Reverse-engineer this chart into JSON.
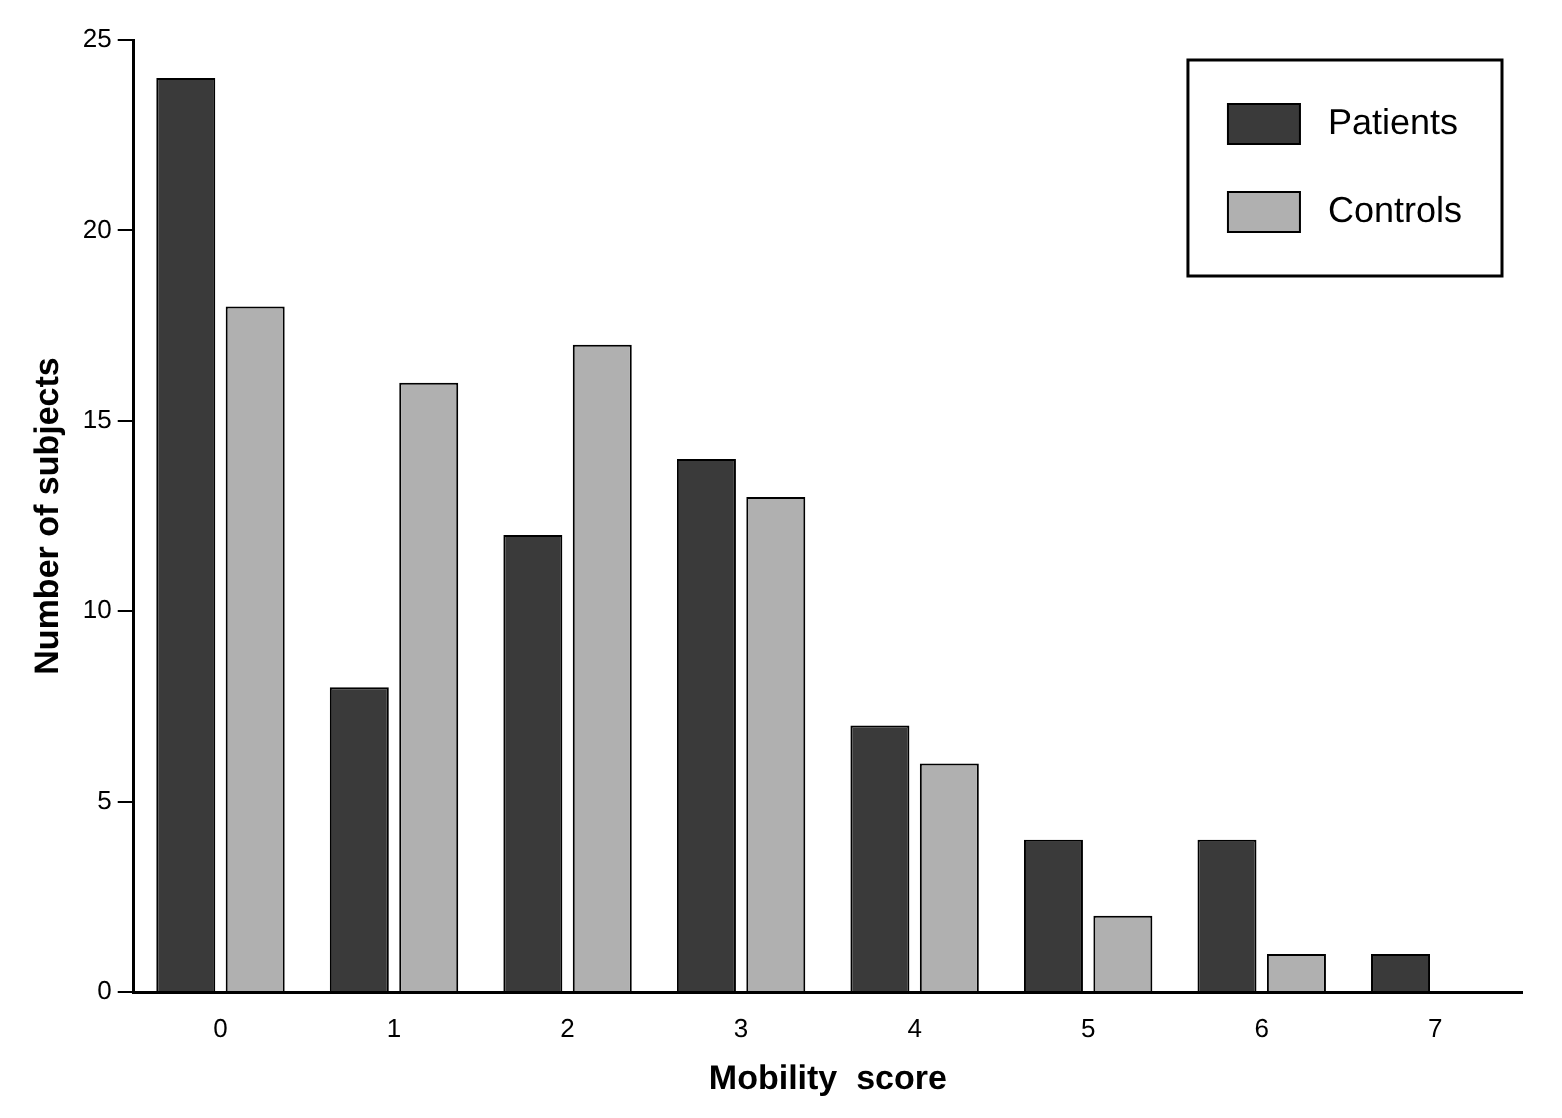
{
  "chart_data": {
    "type": "bar",
    "xlabel": "Mobility  score",
    "ylabel": "Number of subjects",
    "categories": [
      "0",
      "1",
      "2",
      "3",
      "4",
      "5",
      "6",
      "7"
    ],
    "series": [
      {
        "name": "Patients",
        "color": "#3a3a3a",
        "values": [
          24,
          8,
          12,
          14,
          7,
          4,
          4,
          1
        ]
      },
      {
        "name": "Controls",
        "color": "#b0b0b0",
        "values": [
          18,
          16,
          17,
          13,
          6,
          2,
          1,
          0
        ]
      }
    ],
    "ylim": [
      0,
      25
    ],
    "yticks": [
      0,
      5,
      10,
      15,
      20,
      25
    ],
    "grid": false,
    "legend": "top right"
  }
}
